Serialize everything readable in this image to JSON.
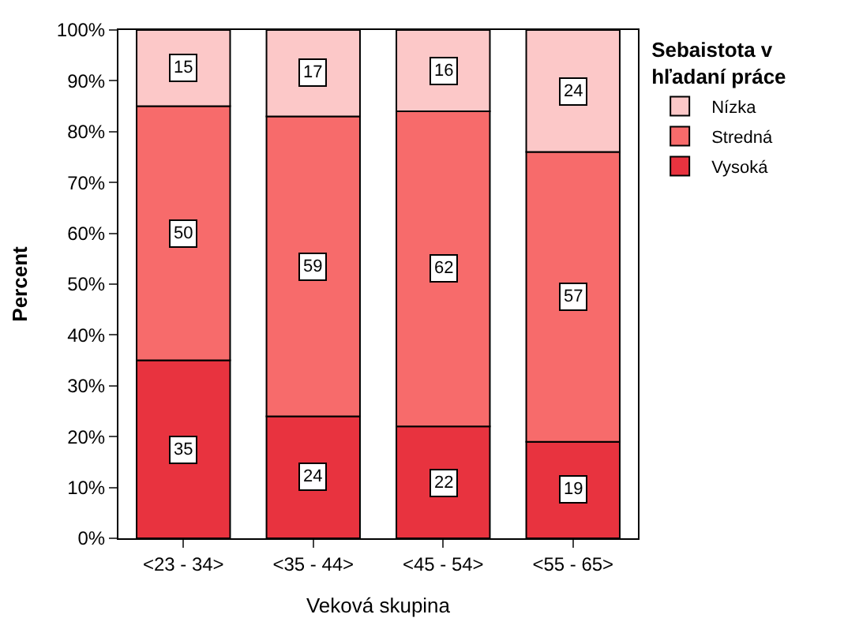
{
  "chart_data": {
    "type": "bar",
    "stacked": true,
    "xlabel": "Veková skupina",
    "ylabel": "Percent",
    "legend_title": "Sebaistota v hľadaní práce",
    "categories": [
      "<23 - 34>",
      "<35 - 44>",
      "<45 - 54>",
      "<55 - 65>"
    ],
    "series": [
      {
        "name": "Vysoká",
        "color": "#e8333f",
        "values": [
          35,
          24,
          22,
          19
        ]
      },
      {
        "name": "Stredná",
        "color": "#f76b6b",
        "values": [
          50,
          59,
          62,
          57
        ]
      },
      {
        "name": "Nízka",
        "color": "#fcc8c8",
        "values": [
          15,
          17,
          16,
          24
        ]
      }
    ],
    "ylim": [
      0,
      100
    ],
    "yticks": [
      {
        "value": 0,
        "label": "0%"
      },
      {
        "value": 10,
        "label": "10%"
      },
      {
        "value": 20,
        "label": "20%"
      },
      {
        "value": 30,
        "label": "30%"
      },
      {
        "value": 40,
        "label": "40%"
      },
      {
        "value": 50,
        "label": "50%"
      },
      {
        "value": 60,
        "label": "60%"
      },
      {
        "value": 70,
        "label": "70%"
      },
      {
        "value": 80,
        "label": "80%"
      },
      {
        "value": 90,
        "label": "90%"
      },
      {
        "value": 100,
        "label": "100%"
      }
    ],
    "data_labels": true,
    "legend": "top right"
  }
}
